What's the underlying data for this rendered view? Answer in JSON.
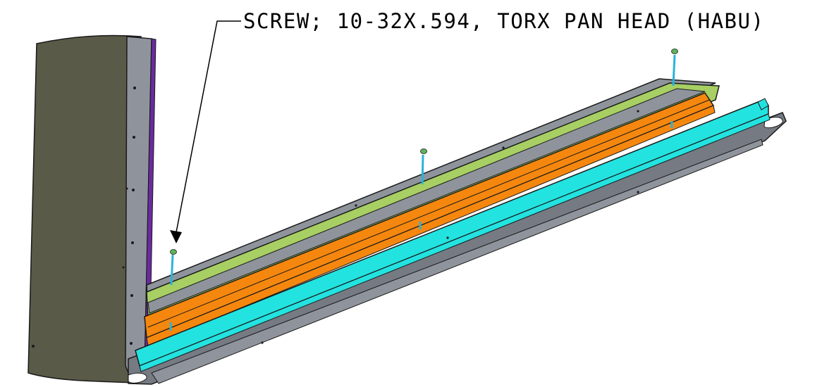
{
  "callout": {
    "label": "SCREW; 10-32X.594, TORX PAN HEAD (HABU)"
  },
  "part_colors": {
    "side_panel_face": "#5a5a48",
    "side_panel_edge": "#8f949c",
    "side_panel_strip": "#6a2aa0",
    "frame_rail": "#8f949c",
    "frame_rail_dark": "#767b83",
    "green_channel": "#a7cf63",
    "orange_channel": "#f5870f",
    "cyan_channel": "#23e3e0",
    "screw_shaft": "#28b4d8",
    "screw_head": "#5fb35a",
    "outline": "#1a1a1a"
  },
  "screws": [
    {
      "name": "screw-far"
    },
    {
      "name": "screw-middle"
    },
    {
      "name": "screw-near"
    }
  ]
}
